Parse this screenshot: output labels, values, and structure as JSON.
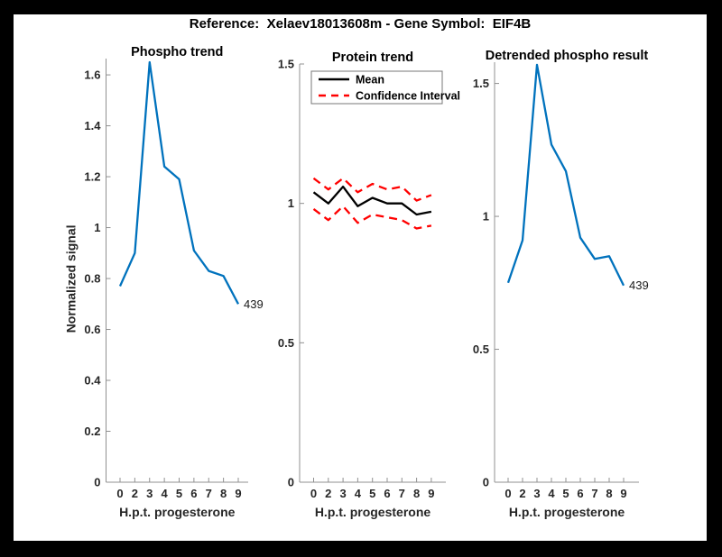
{
  "figure": {
    "title": "Reference:  Xelaev18013608m - Gene Symbol:  EIF4B",
    "background_color": "#ffffff",
    "frame_color": "#000000",
    "text_color": "#262626",
    "axis_color": "#909090"
  },
  "chart_data": [
    {
      "id": "phospho-trend",
      "type": "line",
      "title": "Phospho trend",
      "xlabel": "H.p.t. progesterone",
      "ylabel": "Normalized signal",
      "categories": [
        "0",
        "2",
        "3",
        "4",
        "5",
        "6",
        "7",
        "8",
        "9"
      ],
      "series": [
        {
          "name": "Phospho signal",
          "color": "#0072BD",
          "dashed": false,
          "values": [
            0.77,
            0.9,
            1.65,
            1.24,
            1.19,
            0.91,
            0.83,
            0.81,
            0.7
          ]
        }
      ],
      "ylim": [
        0,
        1.664
      ],
      "yticks": [
        0,
        0.2,
        0.4,
        0.6,
        0.8,
        1,
        1.2,
        1.4,
        1.6
      ],
      "ytick_labels": [
        "0",
        "0.2",
        "0.4",
        "0.6",
        "0.8",
        "1",
        "1.2",
        "1.4",
        "1.6"
      ],
      "grid": false,
      "legend": null,
      "annotation": {
        "text": "439",
        "x_index": 8,
        "value": 0.7
      }
    },
    {
      "id": "protein-trend",
      "type": "line",
      "title": "Protein trend",
      "xlabel": "H.p.t. progesterone",
      "ylabel": "",
      "categories": [
        "0",
        "2",
        "3",
        "4",
        "5",
        "6",
        "7",
        "8",
        "9"
      ],
      "series": [
        {
          "name": "Mean",
          "color": "#000000",
          "dashed": false,
          "values": [
            1.04,
            1.0,
            1.06,
            0.99,
            1.02,
            1.0,
            1.0,
            0.96,
            0.97
          ]
        },
        {
          "name": "Confidence Interval upper",
          "color": "#ff0000",
          "dashed": true,
          "values": [
            1.09,
            1.05,
            1.09,
            1.04,
            1.07,
            1.05,
            1.06,
            1.01,
            1.03
          ]
        },
        {
          "name": "Confidence Interval lower",
          "color": "#ff0000",
          "dashed": true,
          "values": [
            0.98,
            0.94,
            0.99,
            0.93,
            0.96,
            0.95,
            0.94,
            0.91,
            0.92
          ]
        }
      ],
      "ylim": [
        0,
        1.5
      ],
      "yticks": [
        0,
        0.5,
        1,
        1.5
      ],
      "ytick_labels": [
        "0",
        "0.5",
        "1",
        "1.5"
      ],
      "grid": false,
      "legend": {
        "position": "northwest",
        "entries": [
          {
            "label": "Mean",
            "color": "#000000",
            "dashed": false
          },
          {
            "label": "Confidence Interval",
            "color": "#ff0000",
            "dashed": true
          }
        ]
      },
      "annotation": null
    },
    {
      "id": "detrended-phospho",
      "type": "line",
      "title": "Detrended phospho result",
      "xlabel": "H.p.t. progesterone",
      "ylabel": "",
      "categories": [
        "0",
        "2",
        "3",
        "4",
        "5",
        "6",
        "7",
        "8",
        "9"
      ],
      "series": [
        {
          "name": "Detrended phospho",
          "color": "#0072BD",
          "dashed": false,
          "values": [
            0.75,
            0.91,
            1.57,
            1.27,
            1.17,
            0.92,
            0.84,
            0.85,
            0.74
          ]
        }
      ],
      "ylim": [
        0,
        1.58
      ],
      "yticks": [
        0,
        0.5,
        1,
        1.5
      ],
      "ytick_labels": [
        "0",
        "0.5",
        "1",
        "1.5"
      ],
      "grid": false,
      "legend": null,
      "annotation": {
        "text": "439",
        "x_index": 8,
        "value": 0.74
      }
    }
  ]
}
